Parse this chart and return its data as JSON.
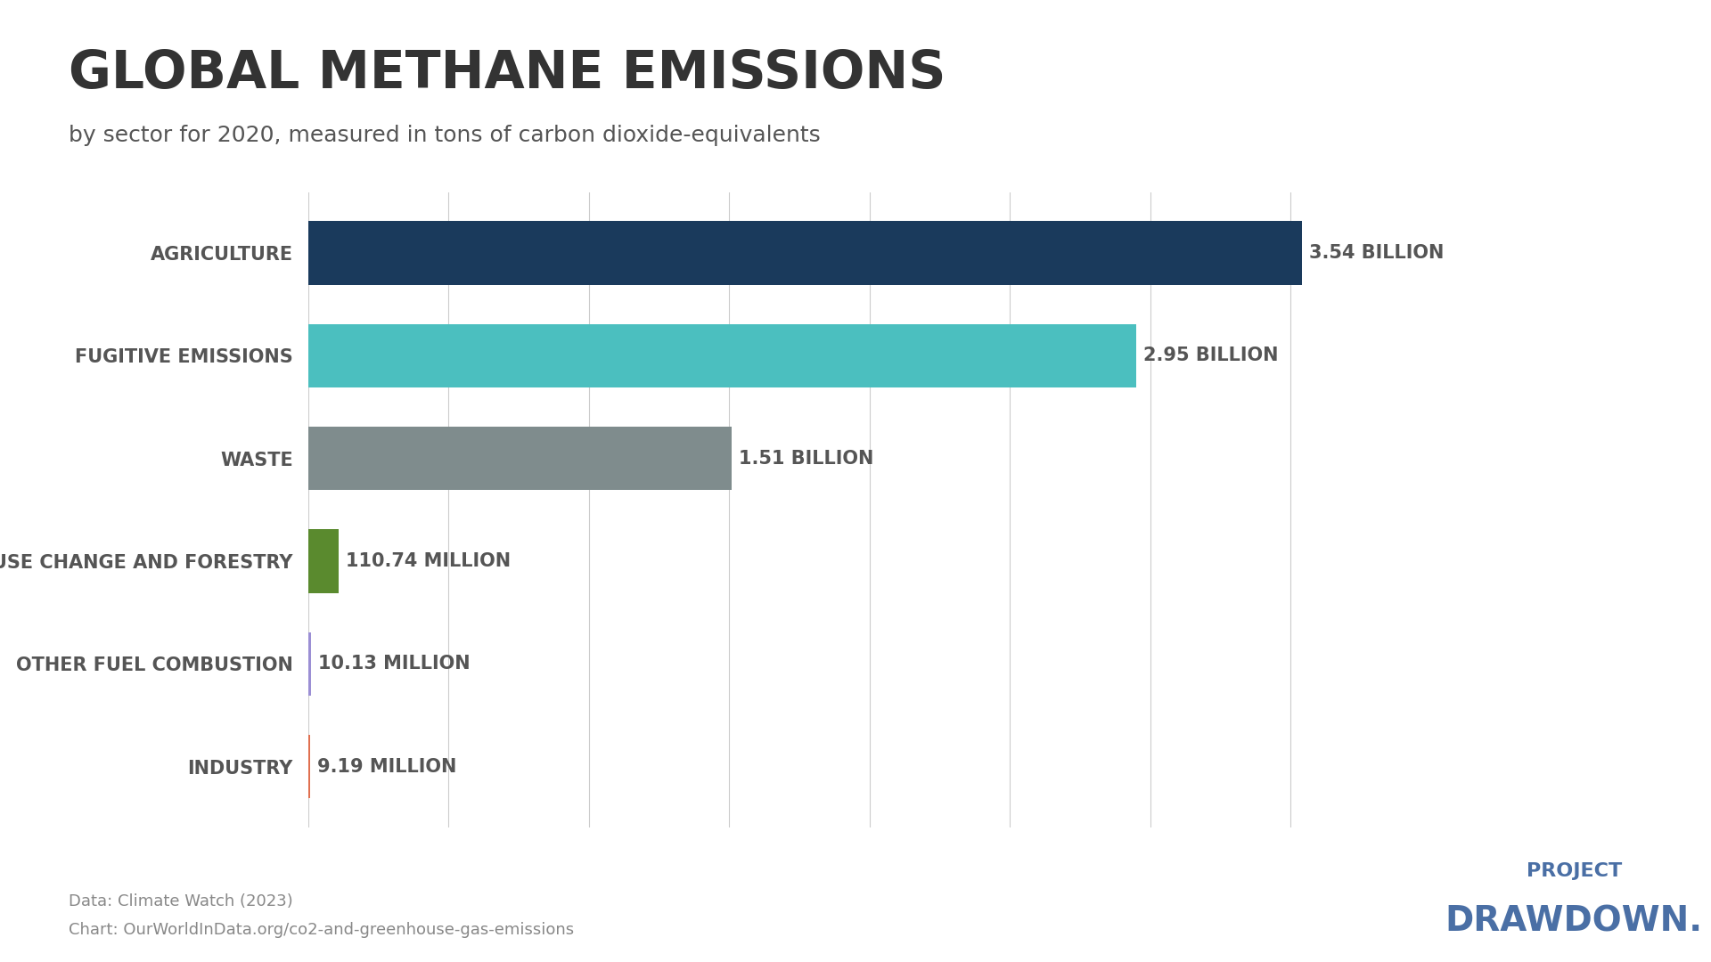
{
  "title": "GLOBAL METHANE EMISSIONS",
  "subtitle": "by sector for 2020, measured in tons of carbon dioxide-equivalents",
  "categories": [
    "AGRICULTURE",
    "FUGITIVE EMISSIONS",
    "WASTE",
    "LAND-USE CHANGE AND FORESTRY",
    "OTHER FUEL COMBUSTION",
    "INDUSTRY"
  ],
  "values": [
    3540000000,
    2950000000,
    1510000000,
    110740000,
    10130000,
    9190000
  ],
  "labels": [
    "3.54 BILLION",
    "2.95 BILLION",
    "1.51 BILLION",
    "110.74 MILLION",
    "10.13 MILLION",
    "9.19 MILLION"
  ],
  "colors": [
    "#1a3a5c",
    "#4bbfbf",
    "#7f8c8d",
    "#5a8a2e",
    "#9b8fd4",
    "#e07050"
  ],
  "background_color": "#ffffff",
  "title_color": "#333333",
  "subtitle_color": "#555555",
  "label_color": "#555555",
  "category_color": "#555555",
  "footer_data": "Data: Climate Watch (2023)",
  "footer_chart": "Chart: OurWorldInData.org/co2-and-greenhouse-gas-emissions",
  "project_line1": "PROJECT",
  "project_line2": "DRAWDOWN.",
  "project_drawdown_color": "#4a6fa5",
  "xlim": [
    0,
    3900000000
  ],
  "grid_color": "#cccccc",
  "title_fontsize": 42,
  "subtitle_fontsize": 18,
  "label_fontsize": 15,
  "category_fontsize": 15,
  "footer_fontsize": 13,
  "project_line1_fontsize": 16,
  "project_line2_fontsize": 28
}
